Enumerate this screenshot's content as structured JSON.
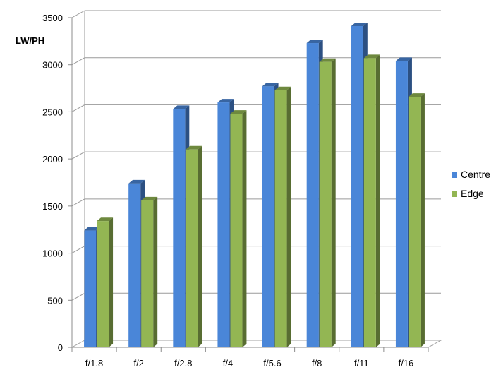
{
  "chart_data": {
    "type": "bar",
    "title": "",
    "xlabel": "",
    "ylabel": "LW/PH",
    "categories": [
      "f/1.8",
      "f/2",
      "f/2.8",
      "f/4",
      "f/5.6",
      "f/8",
      "f/11",
      "f/16"
    ],
    "series": [
      {
        "name": "Centre",
        "color": "#4A86D8",
        "values": [
          1240,
          1740,
          2530,
          2600,
          2770,
          3230,
          3410,
          3040
        ]
      },
      {
        "name": "Edge",
        "color": "#93B653",
        "values": [
          1340,
          1560,
          2100,
          2480,
          2730,
          3030,
          3070,
          2660
        ]
      }
    ],
    "ylim": [
      0,
      3500
    ],
    "yticks": [
      0,
      500,
      1000,
      1500,
      2000,
      2500,
      3000,
      3500
    ],
    "grid": true,
    "legend": "right",
    "style": "3d-clustered-column"
  }
}
